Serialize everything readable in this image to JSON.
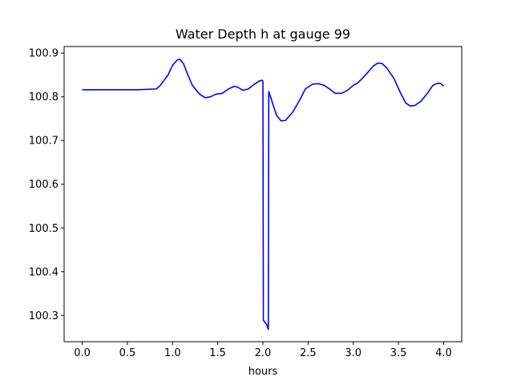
{
  "chart_data": {
    "type": "line",
    "title": "Water Depth h at gauge 99",
    "xlabel": "hours",
    "ylabel": "",
    "xlim": [
      -0.2,
      4.2
    ],
    "ylim": [
      100.24,
      100.915
    ],
    "x_ticks": [
      0.0,
      0.5,
      1.0,
      1.5,
      2.0,
      2.5,
      3.0,
      3.5,
      4.0
    ],
    "x_tick_labels": [
      "0.0",
      "0.5",
      "1.0",
      "1.5",
      "2.0",
      "2.5",
      "3.0",
      "3.5",
      "4.0"
    ],
    "y_ticks": [
      100.3,
      100.4,
      100.5,
      100.6,
      100.7,
      100.8,
      100.9
    ],
    "y_tick_labels": [
      "100.3",
      "100.4",
      "100.5",
      "100.6",
      "100.7",
      "100.8",
      "100.9"
    ],
    "grid": false,
    "series": [
      {
        "color": "#0000ff",
        "points": [
          [
            0.0,
            100.816
          ],
          [
            0.3,
            100.816
          ],
          [
            0.6,
            100.816
          ],
          [
            0.82,
            100.818
          ],
          [
            0.86,
            100.825
          ],
          [
            0.95,
            100.85
          ],
          [
            1.0,
            100.872
          ],
          [
            1.05,
            100.884
          ],
          [
            1.08,
            100.886
          ],
          [
            1.12,
            100.876
          ],
          [
            1.17,
            100.85
          ],
          [
            1.22,
            100.826
          ],
          [
            1.3,
            100.806
          ],
          [
            1.36,
            100.798
          ],
          [
            1.42,
            100.8
          ],
          [
            1.48,
            100.806
          ],
          [
            1.55,
            100.808
          ],
          [
            1.62,
            100.818
          ],
          [
            1.68,
            100.824
          ],
          [
            1.72,
            100.822
          ],
          [
            1.78,
            100.815
          ],
          [
            1.84,
            100.818
          ],
          [
            1.9,
            100.828
          ],
          [
            1.96,
            100.836
          ],
          [
            1.99,
            100.838
          ],
          [
            2.0,
            100.836
          ],
          [
            2.005,
            100.289
          ],
          [
            2.04,
            100.28
          ],
          [
            2.06,
            100.268
          ],
          [
            2.065,
            100.812
          ],
          [
            2.1,
            100.79
          ],
          [
            2.15,
            100.758
          ],
          [
            2.2,
            100.745
          ],
          [
            2.25,
            100.746
          ],
          [
            2.33,
            100.765
          ],
          [
            2.4,
            100.79
          ],
          [
            2.47,
            100.818
          ],
          [
            2.55,
            100.829
          ],
          [
            2.62,
            100.83
          ],
          [
            2.68,
            100.826
          ],
          [
            2.75,
            100.816
          ],
          [
            2.8,
            100.808
          ],
          [
            2.87,
            100.808
          ],
          [
            2.93,
            100.814
          ],
          [
            3.0,
            100.826
          ],
          [
            3.05,
            100.832
          ],
          [
            3.1,
            100.842
          ],
          [
            3.17,
            100.858
          ],
          [
            3.22,
            100.87
          ],
          [
            3.27,
            100.877
          ],
          [
            3.32,
            100.876
          ],
          [
            3.37,
            100.866
          ],
          [
            3.45,
            100.842
          ],
          [
            3.52,
            100.81
          ],
          [
            3.58,
            100.786
          ],
          [
            3.63,
            100.779
          ],
          [
            3.68,
            100.78
          ],
          [
            3.75,
            100.79
          ],
          [
            3.82,
            100.808
          ],
          [
            3.88,
            100.826
          ],
          [
            3.93,
            100.831
          ],
          [
            3.97,
            100.83
          ],
          [
            4.0,
            100.824
          ]
        ]
      }
    ]
  }
}
